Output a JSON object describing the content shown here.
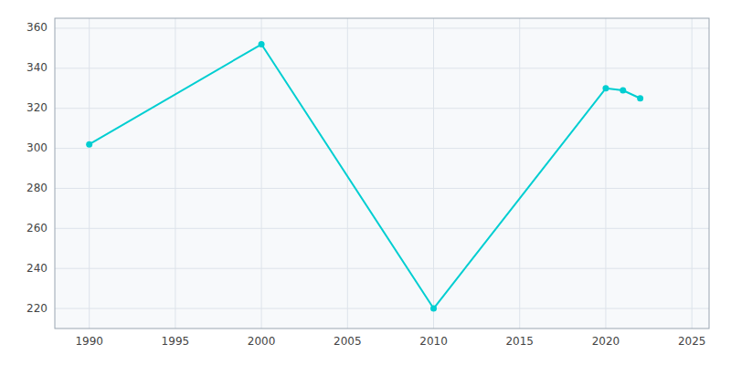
{
  "chart_data": {
    "type": "line",
    "x": [
      1990,
      2000,
      2010,
      2020,
      2021,
      2022
    ],
    "values": [
      302,
      352,
      220,
      330,
      329,
      325
    ],
    "color": "#00CED1",
    "marker": "circle",
    "xlim": [
      1988,
      2026
    ],
    "ylim": [
      210,
      365
    ],
    "xticks": [
      1990,
      1995,
      2000,
      2005,
      2010,
      2015,
      2020,
      2025
    ],
    "yticks": [
      220,
      240,
      260,
      280,
      300,
      320,
      340,
      360
    ],
    "grid": true
  }
}
